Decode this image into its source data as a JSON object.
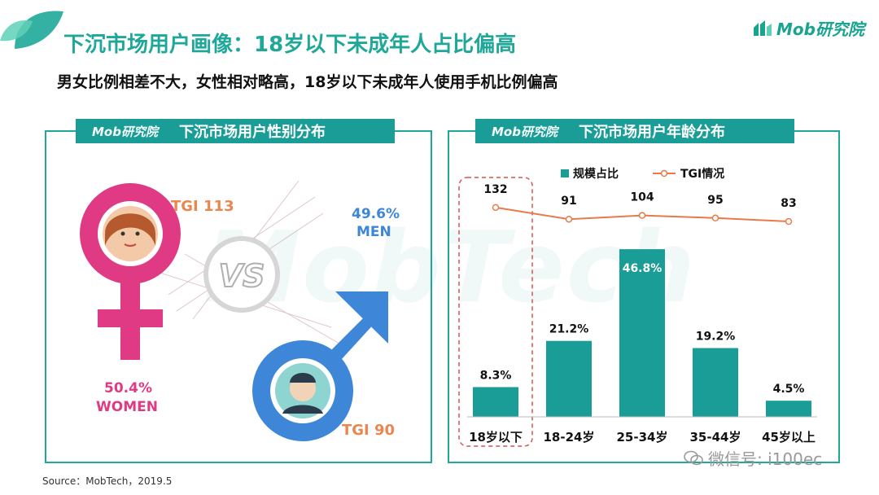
{
  "header": {
    "title": "下沉市场用户画像：18岁以下未成年人占比偏高",
    "subtitle": "男女比例相差不大，女性相对略高，18岁以下未成年人使用手机比例偏高",
    "brand": "Mob研究院"
  },
  "gender_panel": {
    "brand": "Mob研究院",
    "title": "下沉市场用户性别分布",
    "vs_text": "VS",
    "women": {
      "tgi_label": "TGI  113",
      "percent": "50.4%",
      "label": "WOMEN"
    },
    "men": {
      "tgi_label": "TGI  90",
      "percent": "49.6%",
      "label": "MEN"
    }
  },
  "age_panel": {
    "brand": "Mob研究院",
    "title": "下沉市场用户年龄分布"
  },
  "watermark": "MobTech",
  "footer": {
    "source": "Source：MobTech，2019.5",
    "wechat": "微信号: i100ec"
  },
  "colors": {
    "teal": "#1fa89a",
    "bar": "#1a9c97",
    "tgi_line": "#e87a4a",
    "pink": "#e03a84",
    "blue": "#3d86d8"
  },
  "chart_data": [
    {
      "type": "pie",
      "title": "下沉市场用户性别分布",
      "categories": [
        "WOMEN",
        "MEN"
      ],
      "values": [
        50.4,
        49.6
      ],
      "tgi": [
        113,
        90
      ]
    },
    {
      "type": "bar",
      "title": "下沉市场用户年龄分布",
      "categories": [
        "18岁以下",
        "18-24岁",
        "25-34岁",
        "35-44岁",
        "45岁以上"
      ],
      "legend_position": "top",
      "series": [
        {
          "name": "规模占比",
          "type": "bar",
          "values": [
            8.3,
            21.2,
            46.8,
            19.2,
            4.5
          ],
          "labels": [
            "8.3%",
            "21.2%",
            "46.8%",
            "19.2%",
            "4.5%"
          ]
        },
        {
          "name": "TGI情况",
          "type": "line",
          "values": [
            132,
            91,
            104,
            95,
            83
          ],
          "labels": [
            "132",
            "91",
            "104",
            "95",
            "83"
          ]
        }
      ],
      "highlight_category": "18岁以下",
      "grid": false
    }
  ]
}
